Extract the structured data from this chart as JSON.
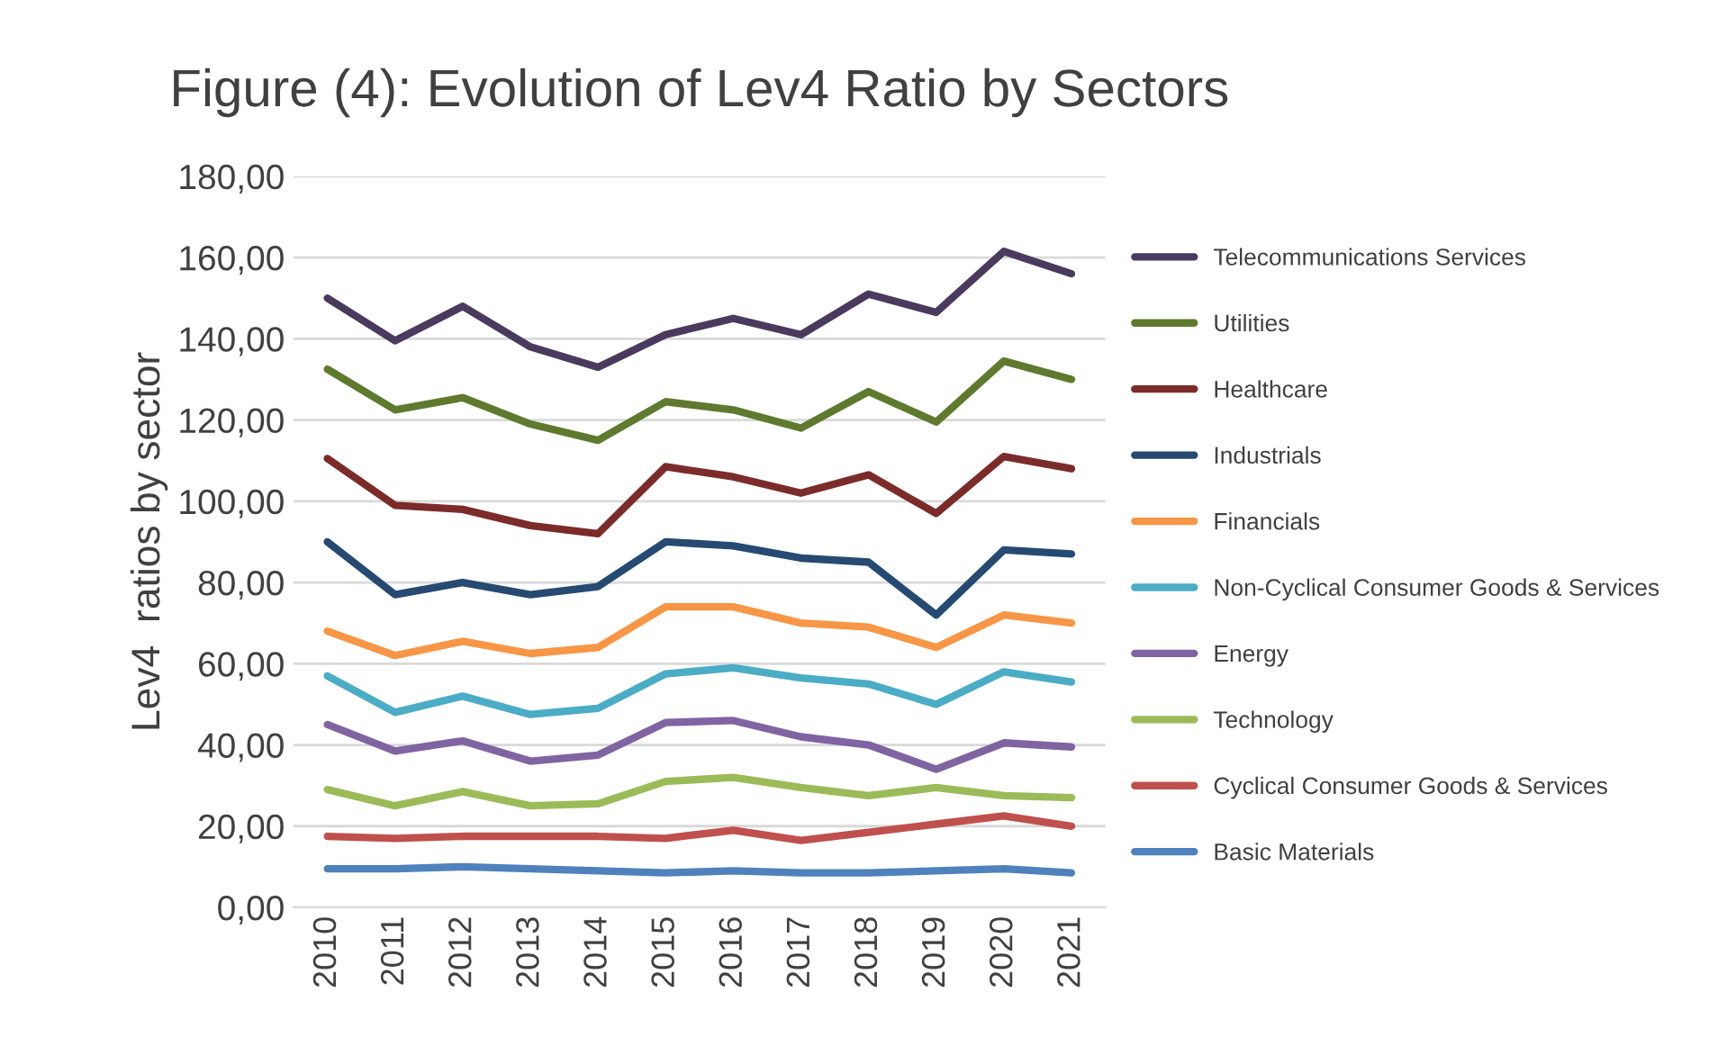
{
  "chart_data": {
    "type": "line",
    "title": "Figure (4): Evolution of Lev4 Ratio by Sectors",
    "ylabel": "Lev4  ratios by sector",
    "categories": [
      "2010",
      "2011",
      "2012",
      "2013",
      "2014",
      "2015",
      "2016",
      "2017",
      "2018",
      "2019",
      "2020",
      "2021"
    ],
    "ylim": [
      0,
      180
    ],
    "yticks": [
      {
        "value": 0,
        "label": "0,00"
      },
      {
        "value": 20,
        "label": "20,00"
      },
      {
        "value": 40,
        "label": "40,00"
      },
      {
        "value": 60,
        "label": "60,00"
      },
      {
        "value": 80,
        "label": "80,00"
      },
      {
        "value": 100,
        "label": "100,00"
      },
      {
        "value": 120,
        "label": "120,00"
      },
      {
        "value": 140,
        "label": "140,00"
      },
      {
        "value": 160,
        "label": "160,00"
      },
      {
        "value": 180,
        "label": "180,00"
      }
    ],
    "grid": "y",
    "legend": "right",
    "marker": "none",
    "line_style": "solid",
    "series": [
      {
        "name": "Telecommunications Services",
        "color": "#4a3b5e",
        "values": [
          150,
          139.5,
          148,
          138,
          133,
          141,
          145,
          141,
          151,
          146.5,
          161.5,
          156
        ]
      },
      {
        "name": "Utilities",
        "color": "#5f7a2f",
        "values": [
          132.5,
          122.5,
          125.5,
          119,
          115,
          124.5,
          122.5,
          118,
          127,
          119.5,
          134.5,
          130
        ]
      },
      {
        "name": "Healthcare",
        "color": "#7b2c2a",
        "values": [
          110.5,
          99,
          98,
          94,
          92,
          108.5,
          106,
          102,
          106.5,
          97,
          111,
          108
        ]
      },
      {
        "name": "Industrials",
        "color": "#264a72",
        "values": [
          90,
          77,
          80,
          77,
          79,
          90,
          89,
          86,
          85,
          72,
          88,
          87
        ]
      },
      {
        "name": "Financials",
        "color": "#f79646",
        "values": [
          68,
          62,
          65.5,
          62.5,
          64,
          74,
          74,
          70,
          69,
          64,
          72,
          70
        ]
      },
      {
        "name": "Non-Cyclical Consumer Goods & Services",
        "color": "#4bacc6",
        "values": [
          57,
          48,
          52,
          47.5,
          49,
          57.5,
          59,
          56.5,
          55,
          50,
          58,
          55.5
        ]
      },
      {
        "name": "Energy",
        "color": "#8064a2",
        "values": [
          45,
          38.5,
          41,
          36,
          37.5,
          45.5,
          46,
          42,
          40,
          34,
          40.5,
          39.5
        ]
      },
      {
        "name": "Technology",
        "color": "#9bbb59",
        "values": [
          29,
          25,
          28.5,
          25,
          25.5,
          31,
          32,
          29.5,
          27.5,
          29.5,
          27.5,
          27
        ]
      },
      {
        "name": "Cyclical Consumer Goods & Services",
        "color": "#c0504d",
        "values": [
          17.5,
          17,
          17.5,
          17.5,
          17.5,
          17,
          19,
          16.5,
          18.5,
          20.5,
          22.5,
          20
        ]
      },
      {
        "name": "Basic Materials",
        "color": "#4f81bd",
        "values": [
          9.5,
          9.5,
          10,
          9.5,
          9,
          8.5,
          9,
          8.5,
          8.5,
          9,
          9.5,
          8.5
        ]
      }
    ]
  }
}
